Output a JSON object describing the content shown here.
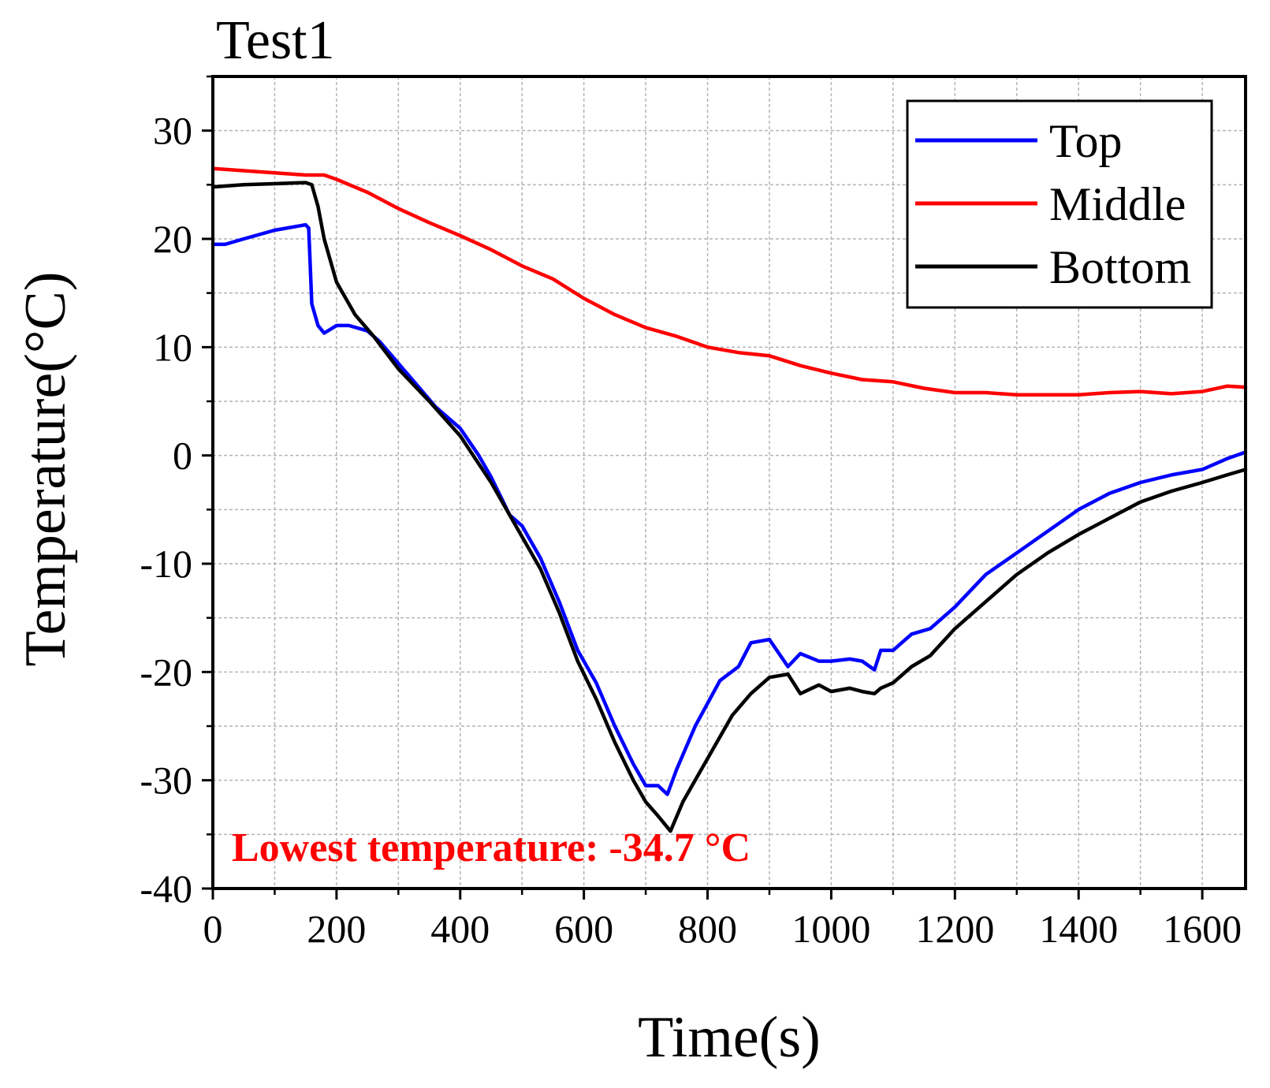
{
  "chart_data": {
    "type": "line",
    "title": "Test1",
    "xlabel": "Time(s)",
    "ylabel": "Temperature(°C)",
    "xlim": [
      0,
      1670
    ],
    "ylim": [
      -40,
      35
    ],
    "xticks": [
      0,
      200,
      400,
      600,
      800,
      1000,
      1200,
      1400,
      1600
    ],
    "xtick_labels": [
      "0",
      "200",
      "400",
      "600",
      "800",
      "1000",
      "1200",
      "1400",
      "1600"
    ],
    "yticks": [
      -40,
      -30,
      -20,
      -10,
      0,
      10,
      20,
      30
    ],
    "ytick_labels": [
      "-40",
      "-30",
      "-20",
      "-10",
      "0",
      "10",
      "20",
      "30"
    ],
    "grid": true,
    "legend_position": "top-right",
    "annotation": {
      "text": "Lowest temperature: -34.7 °C",
      "color": "#ff0000"
    },
    "series": [
      {
        "name": "Top",
        "color": "#0000ff",
        "x": [
          0,
          20,
          50,
          100,
          150,
          155,
          160,
          170,
          180,
          200,
          220,
          250,
          270,
          300,
          330,
          360,
          400,
          430,
          450,
          480,
          500,
          530,
          560,
          590,
          620,
          650,
          680,
          700,
          720,
          735,
          750,
          780,
          820,
          850,
          870,
          900,
          930,
          950,
          980,
          1000,
          1030,
          1050,
          1070,
          1080,
          1100,
          1130,
          1160,
          1200,
          1250,
          1300,
          1350,
          1400,
          1450,
          1500,
          1550,
          1600,
          1640,
          1670
        ],
        "y": [
          19.5,
          19.5,
          20.0,
          20.8,
          21.3,
          21.0,
          14.0,
          12.0,
          11.3,
          12.0,
          12.0,
          11.5,
          10.5,
          8.5,
          6.5,
          4.5,
          2.5,
          0,
          -2.0,
          -5.5,
          -6.5,
          -9.5,
          -13.5,
          -18.0,
          -21.0,
          -25.0,
          -28.5,
          -30.5,
          -30.5,
          -31.3,
          -29.0,
          -25.0,
          -20.8,
          -19.5,
          -17.3,
          -17.0,
          -19.5,
          -18.3,
          -19.0,
          -19.0,
          -18.8,
          -19.0,
          -19.8,
          -18.0,
          -18.0,
          -16.5,
          -16.0,
          -14.0,
          -11.0,
          -9.0,
          -7.0,
          -5.0,
          -3.5,
          -2.5,
          -1.8,
          -1.3,
          -0.3,
          0.3
        ]
      },
      {
        "name": "Middle",
        "color": "#ff0000",
        "x": [
          0,
          50,
          100,
          150,
          180,
          200,
          250,
          300,
          350,
          400,
          450,
          500,
          550,
          600,
          650,
          700,
          750,
          800,
          850,
          900,
          950,
          1000,
          1050,
          1100,
          1150,
          1200,
          1250,
          1300,
          1350,
          1400,
          1450,
          1500,
          1550,
          1600,
          1640,
          1670
        ],
        "y": [
          26.5,
          26.3,
          26.1,
          25.9,
          25.9,
          25.5,
          24.3,
          22.8,
          21.5,
          20.3,
          19.0,
          17.5,
          16.3,
          14.5,
          13.0,
          11.8,
          11.0,
          10.0,
          9.5,
          9.2,
          8.3,
          7.6,
          7.0,
          6.8,
          6.2,
          5.8,
          5.8,
          5.6,
          5.6,
          5.6,
          5.8,
          5.9,
          5.7,
          5.9,
          6.4,
          6.3
        ]
      },
      {
        "name": "Bottom",
        "color": "#000000",
        "x": [
          0,
          50,
          100,
          150,
          160,
          170,
          180,
          200,
          230,
          260,
          300,
          350,
          400,
          450,
          480,
          500,
          530,
          560,
          590,
          620,
          650,
          680,
          700,
          720,
          730,
          740,
          760,
          800,
          840,
          870,
          900,
          930,
          950,
          980,
          1000,
          1030,
          1050,
          1070,
          1080,
          1100,
          1130,
          1160,
          1200,
          1250,
          1300,
          1350,
          1400,
          1450,
          1500,
          1550,
          1600,
          1640,
          1670
        ],
        "y": [
          24.8,
          25.0,
          25.1,
          25.2,
          25.0,
          23.0,
          20.0,
          16.0,
          13.0,
          11.0,
          8.0,
          5.0,
          1.8,
          -2.5,
          -5.5,
          -7.5,
          -10.5,
          -14.5,
          -19.0,
          -22.5,
          -26.5,
          -30.0,
          -32.0,
          -33.3,
          -34.0,
          -34.7,
          -32.0,
          -28.0,
          -24.0,
          -22.0,
          -20.5,
          -20.2,
          -22.0,
          -21.2,
          -21.8,
          -21.5,
          -21.8,
          -22.0,
          -21.5,
          -21.0,
          -19.5,
          -18.5,
          -16.0,
          -13.5,
          -11.0,
          -9.0,
          -7.3,
          -5.8,
          -4.3,
          -3.3,
          -2.5,
          -1.8,
          -1.3
        ]
      }
    ]
  }
}
